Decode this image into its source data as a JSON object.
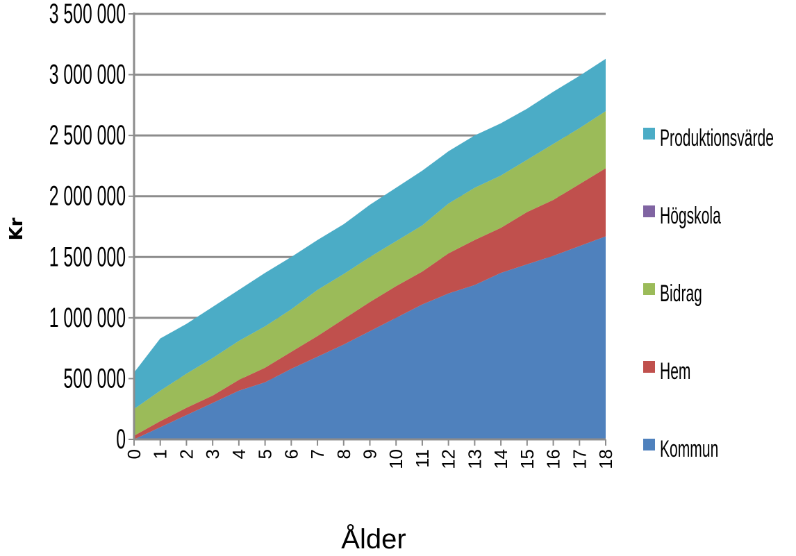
{
  "chart_data": {
    "type": "area",
    "stacked": true,
    "xlabel": "Ålder",
    "ylabel": "Kr",
    "x": [
      0,
      1,
      2,
      3,
      4,
      5,
      6,
      7,
      8,
      9,
      10,
      11,
      12,
      13,
      14,
      15,
      16,
      17,
      18
    ],
    "ylim": [
      0,
      3500000
    ],
    "yticks": [
      0,
      500000,
      1000000,
      1500000,
      2000000,
      2500000,
      3000000,
      3500000
    ],
    "ytick_labels": [
      "0",
      "500 000",
      "1 000 000",
      "1 500 000",
      "2 000 000",
      "2 500 000",
      "3 000 000",
      "3 500 000"
    ],
    "grid": true,
    "legend_position": "right",
    "series": [
      {
        "name": "Kommun",
        "color": "#4f81bd",
        "values": [
          0,
          100000,
          200000,
          300000,
          400000,
          470000,
          580000,
          680000,
          780000,
          890000,
          1000000,
          1110000,
          1200000,
          1270000,
          1370000,
          1440000,
          1510000,
          1590000,
          1670000
        ]
      },
      {
        "name": "Hem",
        "color": "#c0504d",
        "values": [
          30000,
          50000,
          60000,
          60000,
          90000,
          120000,
          140000,
          170000,
          210000,
          240000,
          260000,
          270000,
          330000,
          370000,
          370000,
          430000,
          460000,
          510000,
          560000
        ]
      },
      {
        "name": "Bidrag",
        "color": "#9bbb59",
        "values": [
          220000,
          250000,
          280000,
          310000,
          320000,
          340000,
          350000,
          380000,
          370000,
          370000,
          370000,
          380000,
          410000,
          430000,
          430000,
          430000,
          460000,
          460000,
          470000
        ]
      },
      {
        "name": "Högskola",
        "color": "#8064a2",
        "values": [
          0,
          0,
          0,
          0,
          0,
          0,
          0,
          0,
          0,
          0,
          0,
          0,
          0,
          0,
          0,
          0,
          0,
          0,
          0
        ]
      },
      {
        "name": "Produktionsvärde",
        "color": "#4bacc6",
        "values": [
          300000,
          430000,
          410000,
          420000,
          420000,
          440000,
          430000,
          410000,
          410000,
          430000,
          440000,
          450000,
          430000,
          430000,
          430000,
          420000,
          430000,
          430000,
          430000
        ]
      }
    ],
    "legend_order": [
      "Produktionsvärde",
      "Högskola",
      "Bidrag",
      "Hem",
      "Kommun"
    ]
  }
}
